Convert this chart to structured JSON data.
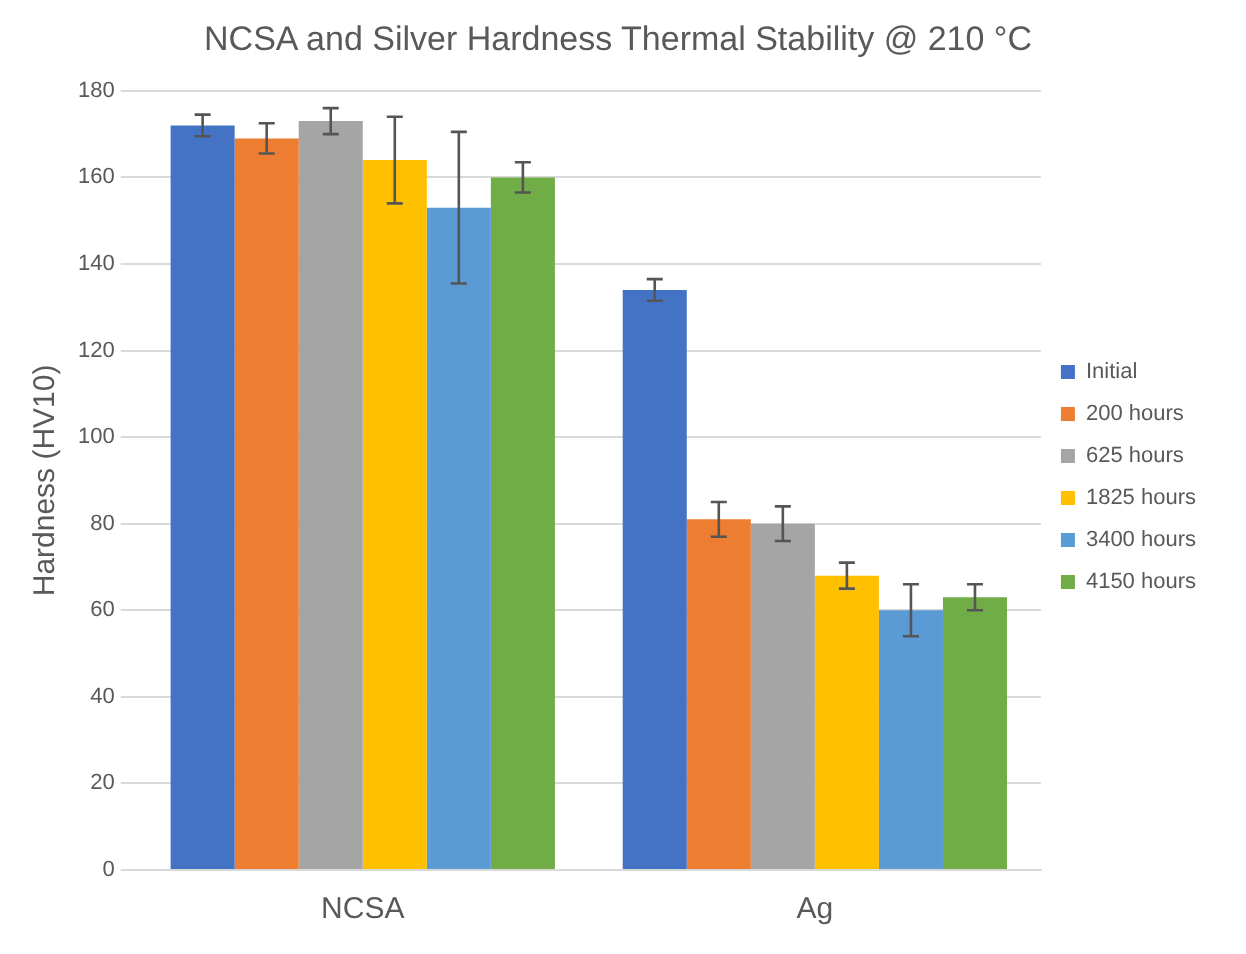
{
  "chart_data": {
    "type": "bar",
    "title": "NCSA and Silver Hardness Thermal Stability @ 210 °C",
    "ylabel": "Hardness (HV10)",
    "categories": [
      "NCSA",
      "Ag"
    ],
    "series": [
      {
        "name": "Initial",
        "color": "#4472c4",
        "values": [
          172,
          134
        ],
        "errors": [
          2.5,
          2.5
        ]
      },
      {
        "name": "200 hours",
        "color": "#ed7d31",
        "values": [
          169,
          81
        ],
        "errors": [
          3.5,
          4
        ]
      },
      {
        "name": "625 hours",
        "color": "#a5a5a5",
        "values": [
          173,
          80
        ],
        "errors": [
          3,
          4
        ]
      },
      {
        "name": "1825 hours",
        "color": "#ffc000",
        "values": [
          164,
          68
        ],
        "errors": [
          10,
          3
        ]
      },
      {
        "name": "3400 hours",
        "color": "#5b9bd5",
        "values": [
          153,
          60
        ],
        "errors": [
          17.5,
          6
        ]
      },
      {
        "name": "4150 hours",
        "color": "#70ad47",
        "values": [
          160,
          63
        ],
        "errors": [
          3.5,
          3
        ]
      }
    ],
    "ylim": [
      0,
      180
    ],
    "yticks": [
      0,
      20,
      40,
      60,
      80,
      100,
      120,
      140,
      160,
      180
    ],
    "grid": "y",
    "legend": "right"
  }
}
